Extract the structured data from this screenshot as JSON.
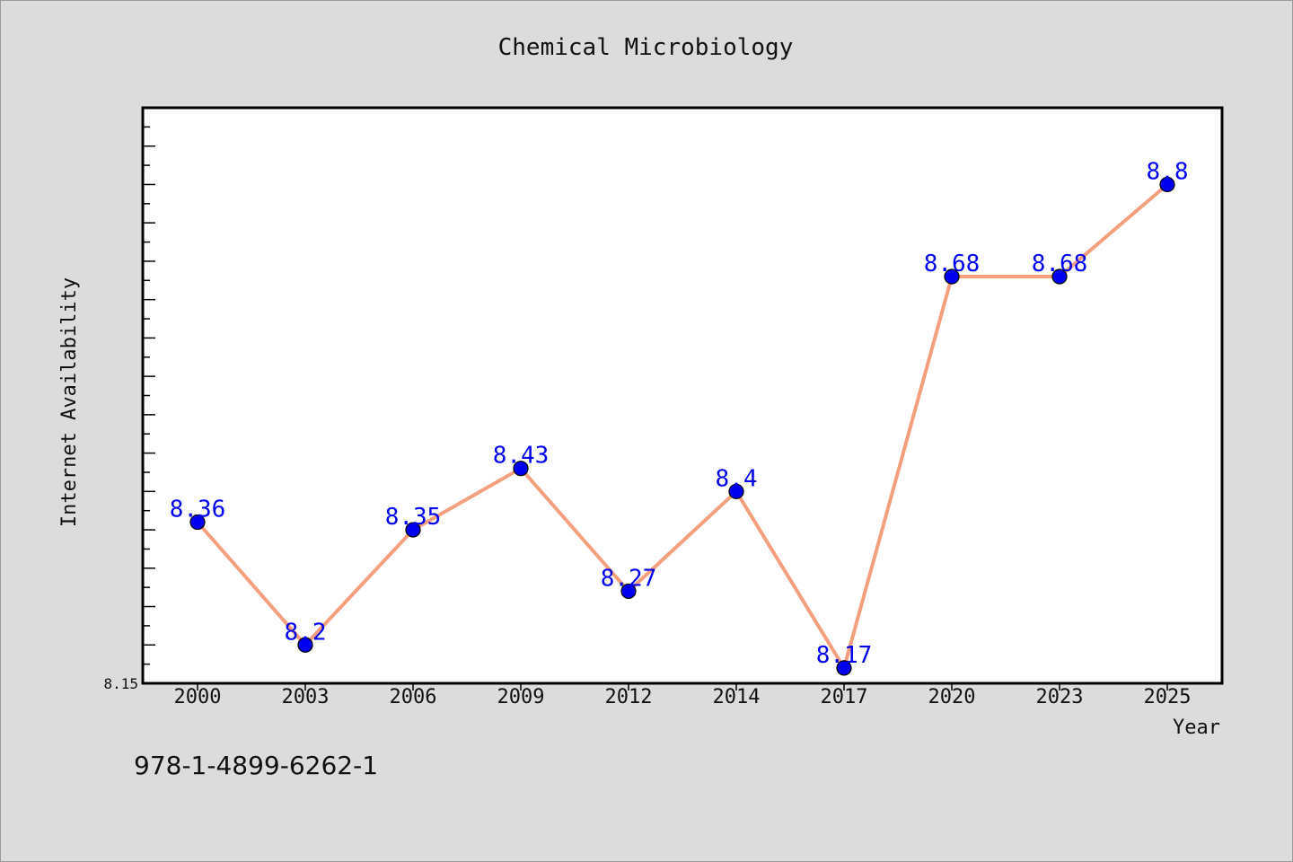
{
  "colors": {
    "background": "#dcdcdc",
    "plot_background": "#ffffff",
    "line": "#f4a07e",
    "marker": "#0000ee",
    "data_label": "#0000ee"
  },
  "footer_code": "978-1-4899-6262-1",
  "chart_data": {
    "type": "line",
    "title": "Chemical Microbiology",
    "xlabel": "Year",
    "ylabel": "Internet Availability",
    "categories": [
      "2000",
      "2003",
      "2006",
      "2009",
      "2012",
      "2014",
      "2017",
      "2020",
      "2023",
      "2025"
    ],
    "series": [
      {
        "values": [
          8.36,
          8.2,
          8.35,
          8.43,
          8.27,
          8.4,
          8.17,
          8.68,
          8.68,
          8.8
        ],
        "labels": [
          "8.36",
          "8.2",
          "8.35",
          "8.43",
          "8.27",
          "8.4",
          "8.17",
          "8.68",
          "8.68",
          "8.8"
        ]
      }
    ],
    "ylim": [
      8.15,
      8.9
    ],
    "yticks_labeled": [
      "8.15"
    ],
    "grid": false,
    "legend": "none"
  }
}
